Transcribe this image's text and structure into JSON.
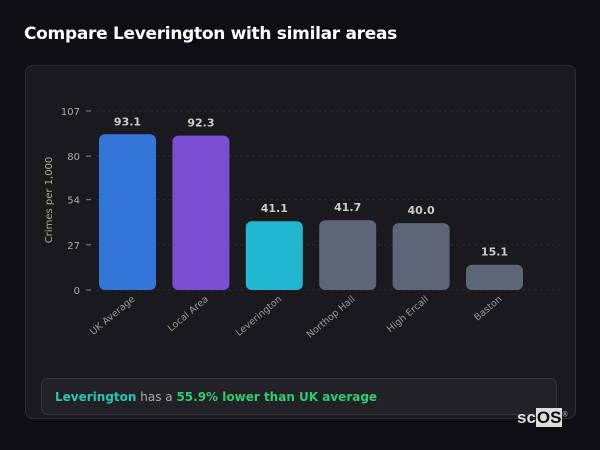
{
  "title": "Compare Leverington with similar areas",
  "chart_data": {
    "type": "bar",
    "ylabel": "Crimes per 1,000",
    "ylim": [
      0,
      107
    ],
    "yticks": [
      0,
      27,
      54,
      80,
      107
    ],
    "grid": true,
    "categories": [
      "UK Average",
      "Local Area",
      "Leverington",
      "Northop Hall",
      "High Ercall",
      "Baston"
    ],
    "values": [
      93.1,
      92.3,
      41.1,
      41.7,
      40.0,
      15.1
    ],
    "labels": [
      "93.1",
      "92.3",
      "41.1",
      "41.7",
      "40.0",
      "15.1"
    ],
    "colors": [
      "#3476d8",
      "#7b4fd4",
      "#22b8d0",
      "#5d6676",
      "#5d6676",
      "#5d6676"
    ]
  },
  "summary": {
    "area": "Leverington",
    "middle": " has a ",
    "highlight": "55.9% lower than UK average",
    "area_color": "#26c6b4",
    "highlight_color": "#2ecc71"
  },
  "logo": {
    "sc": "sc",
    "os": "OS",
    "mark": "®"
  }
}
